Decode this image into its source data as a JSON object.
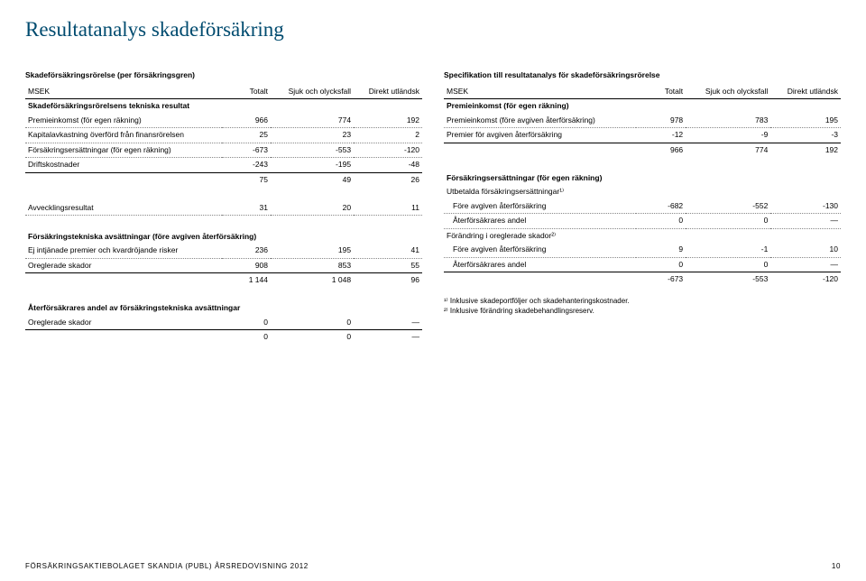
{
  "title": "Resultatanalys skadeförsäkring",
  "left": {
    "tableTitle": "Skadeförsäkringsrörelse (per försäkringsgren)",
    "headers": {
      "c0": "MSEK",
      "c1": "Totalt",
      "c2": "Sjuk och olycksfall",
      "c3": "Direkt utländsk"
    },
    "sec1": "Skadeförsäkringsrörelsens tekniska resultat",
    "r1": {
      "l": "Premieinkomst (för egen räkning)",
      "a": "966",
      "b": "774",
      "c": "192"
    },
    "r2": {
      "l": "Kapitalavkastning överförd från finansrörelsen",
      "a": "25",
      "b": "23",
      "c": "2"
    },
    "r3": {
      "l": "Försäkringsersättningar (för egen räkning)",
      "a": "-673",
      "b": "-553",
      "c": "-120"
    },
    "r4": {
      "l": "Driftskostnader",
      "a": "-243",
      "b": "-195",
      "c": "-48"
    },
    "sub1": {
      "a": "75",
      "b": "49",
      "c": "26"
    },
    "r5": {
      "l": "Avvecklingsresultat",
      "a": "31",
      "b": "20",
      "c": "11"
    },
    "sec2": "Försäkringstekniska avsättningar (före avgiven återförsäkring)",
    "r6": {
      "l": "Ej intjänade premier och kvardröjande risker",
      "a": "236",
      "b": "195",
      "c": "41"
    },
    "r7": {
      "l": "Oreglerade skador",
      "a": "908",
      "b": "853",
      "c": "55"
    },
    "sub2": {
      "a": "1 144",
      "b": "1 048",
      "c": "96"
    },
    "sec3": "Återförsäkrares andel av försäkringstekniska avsättningar",
    "r8": {
      "l": "Oreglerade skador",
      "a": "0",
      "b": "0",
      "c": "—"
    },
    "sub3": {
      "a": "0",
      "b": "0",
      "c": "—"
    }
  },
  "right": {
    "tableTitle": "Specifikation till resultatanalys för skadeförsäkringsrörelse",
    "headers": {
      "c0": "MSEK",
      "c1": "Totalt",
      "c2": "Sjuk och olycksfall",
      "c3": "Direkt utländsk"
    },
    "sec1": "Premieinkomst (för egen räkning)",
    "r1": {
      "l": "Premieinkomst (före avgiven återförsäkring)",
      "a": "978",
      "b": "783",
      "c": "195"
    },
    "r2": {
      "l": "Premier för avgiven återförsäkring",
      "a": "-12",
      "b": "-9",
      "c": "-3"
    },
    "sub1": {
      "a": "966",
      "b": "774",
      "c": "192"
    },
    "sec2": "Försäkringsersättningar (för egen räkning)",
    "r3": {
      "l": "Utbetalda försäkringsersättningar¹⁾"
    },
    "r4": {
      "l": "Före avgiven återförsäkring",
      "a": "-682",
      "b": "-552",
      "c": "-130"
    },
    "r5": {
      "l": "Återförsäkrares andel",
      "a": "0",
      "b": "0",
      "c": "—"
    },
    "r6": {
      "l": "Förändring i oreglerade skador²⁾"
    },
    "r7": {
      "l": "Före avgiven återförsäkring",
      "a": "9",
      "b": "-1",
      "c": "10"
    },
    "r8": {
      "l": "Återförsäkrares andel",
      "a": "0",
      "b": "0",
      "c": "—"
    },
    "sub2": {
      "a": "-673",
      "b": "-553",
      "c": "-120"
    },
    "fn1": "¹⁾ Inklusive skadeportföljer och skadehanteringskostnader.",
    "fn2": "²⁾ Inklusive förändring skadebehandlingsreserv."
  },
  "footer": {
    "left": "FÖRSÄKRINGSAKTIEBOLAGET SKANDIA (PUBL) ÅRSREDOVISNING 2012",
    "page": "10"
  }
}
